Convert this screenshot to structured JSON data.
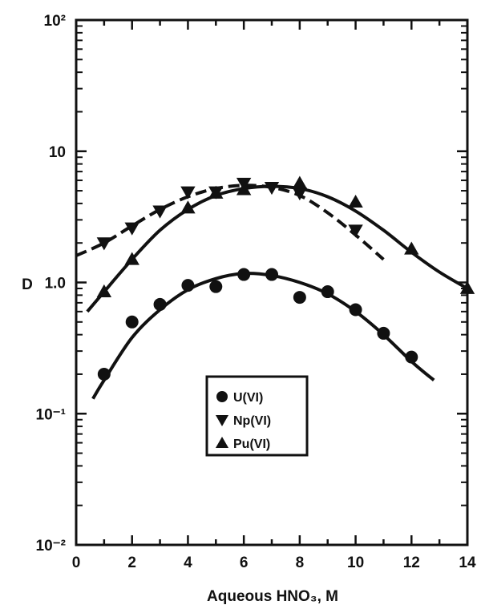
{
  "chart_data": {
    "type": "scatter",
    "xlabel": "Aqueous HNO₃, M",
    "ylabel": "D",
    "xlim": [
      0,
      14
    ],
    "ylim": [
      0.01,
      100
    ],
    "yscale": "log",
    "x_ticks": [
      0,
      2,
      4,
      6,
      8,
      10,
      12,
      14
    ],
    "x_tick_labels": [
      "0",
      "2",
      "4",
      "6",
      "8",
      "10",
      "12",
      "14"
    ],
    "y_ticks": [
      0.01,
      0.1,
      1,
      10,
      100
    ],
    "y_tick_labels": [
      "10⁻²",
      "10⁻¹",
      "1.0",
      "10",
      "10²"
    ],
    "grid": false,
    "legend_position": "center",
    "series": [
      {
        "name": "U(VI)",
        "marker": "circle",
        "line_style": "solid",
        "points": [
          [
            1,
            0.2
          ],
          [
            2,
            0.5
          ],
          [
            3,
            0.68
          ],
          [
            4,
            0.95
          ],
          [
            5,
            0.93
          ],
          [
            6,
            1.15
          ],
          [
            7,
            1.15
          ],
          [
            8,
            0.77
          ],
          [
            9,
            0.85
          ],
          [
            10,
            0.62
          ],
          [
            11,
            0.41
          ],
          [
            12,
            0.27
          ]
        ],
        "curve": [
          [
            0.6,
            0.13
          ],
          [
            1,
            0.18
          ],
          [
            2,
            0.38
          ],
          [
            3,
            0.62
          ],
          [
            4,
            0.88
          ],
          [
            5,
            1.07
          ],
          [
            6,
            1.17
          ],
          [
            7,
            1.13
          ],
          [
            8,
            1.0
          ],
          [
            9,
            0.82
          ],
          [
            10,
            0.6
          ],
          [
            11,
            0.4
          ],
          [
            12,
            0.25
          ],
          [
            12.8,
            0.18
          ]
        ]
      },
      {
        "name": "Np(VI)",
        "marker": "triangle-down",
        "line_style": "dashed",
        "points": [
          [
            1,
            2.0
          ],
          [
            2,
            2.6
          ],
          [
            3,
            3.5
          ],
          [
            4,
            4.9
          ],
          [
            5,
            4.9
          ],
          [
            6,
            5.7
          ],
          [
            7,
            5.3
          ],
          [
            8,
            4.8
          ],
          [
            10,
            2.5
          ]
        ],
        "curve": [
          [
            0,
            1.6
          ],
          [
            1,
            2.0
          ],
          [
            2,
            2.7
          ],
          [
            3,
            3.6
          ],
          [
            4,
            4.5
          ],
          [
            5,
            5.2
          ],
          [
            6,
            5.5
          ],
          [
            7,
            5.3
          ],
          [
            8,
            4.6
          ],
          [
            9,
            3.4
          ],
          [
            10,
            2.3
          ],
          [
            11,
            1.5
          ]
        ]
      },
      {
        "name": "Pu(VI)",
        "marker": "triangle-up",
        "line_style": "solid",
        "points": [
          [
            1,
            0.85
          ],
          [
            2,
            1.5
          ],
          [
            4,
            3.7
          ],
          [
            5,
            4.8
          ],
          [
            6,
            5.1
          ],
          [
            8,
            5.7
          ],
          [
            10,
            4.1
          ],
          [
            12,
            1.8
          ],
          [
            14,
            0.9
          ]
        ],
        "curve": [
          [
            0.4,
            0.6
          ],
          [
            1,
            0.85
          ],
          [
            2,
            1.5
          ],
          [
            3,
            2.5
          ],
          [
            4,
            3.6
          ],
          [
            5,
            4.6
          ],
          [
            6,
            5.2
          ],
          [
            7,
            5.4
          ],
          [
            8,
            5.2
          ],
          [
            9,
            4.5
          ],
          [
            10,
            3.5
          ],
          [
            11,
            2.5
          ],
          [
            12,
            1.7
          ],
          [
            13,
            1.2
          ],
          [
            14,
            0.9
          ]
        ]
      }
    ],
    "legend": [
      {
        "label": "U(VI)",
        "marker": "circle"
      },
      {
        "label": "Np(VI)",
        "marker": "triangle-down"
      },
      {
        "label": "Pu(VI)",
        "marker": "triangle-up"
      }
    ]
  }
}
